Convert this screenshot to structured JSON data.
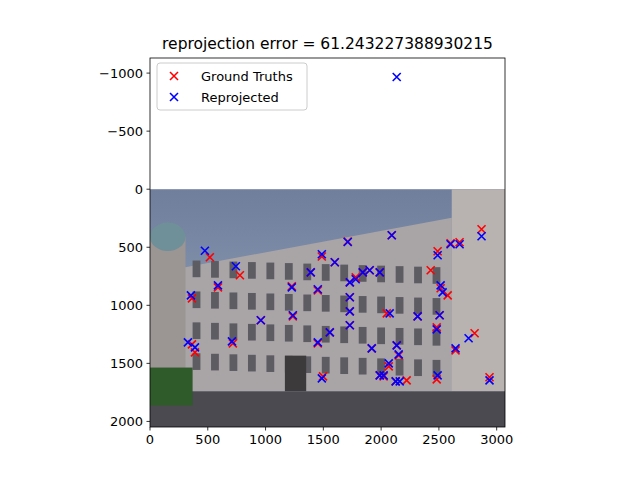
{
  "chart_data": {
    "type": "scatter",
    "title": "reprojection error = 61.243227388930215",
    "xlim": [
      0,
      3072
    ],
    "ylim": [
      2048,
      -1130
    ],
    "xticks": [
      0,
      500,
      1000,
      1500,
      2000,
      2500,
      3000
    ],
    "yticks": [
      {
        "value": -1000,
        "label": "−1000"
      },
      {
        "value": -500,
        "label": "−500"
      },
      0,
      500,
      1000,
      1500,
      2000
    ],
    "legend": "upper left",
    "grid": false,
    "series": [
      {
        "name": "Ground Truths",
        "color": "red",
        "marker": "x",
        "x": [
          1711,
          2092,
          518,
          588,
          778,
          363,
          959,
          363,
          389,
          717,
          1227,
          1236,
          1391,
          1452,
          1487,
          1599,
          1452,
          1556,
          1497,
          1729,
          1729,
          1729,
          1729,
          1780,
          1841,
          1901,
          1988,
          2049,
          1919,
          1988,
          2022,
          2066,
          2135,
          2152,
          2126,
          2221,
          2316,
          2429,
          2489,
          2515,
          2576,
          2481,
          2506,
          2481,
          2601,
          2679,
          2644,
          2869,
          2809,
          2938
        ],
        "values": [
          450,
          397,
          586,
          845,
          741,
          940,
          1129,
          1336,
          1405,
          1328,
          836,
          1095,
          716,
          871,
          580,
          629,
          1328,
          1233,
          1612,
          802,
          931,
          1052,
          1172,
          759,
          716,
          698,
          716,
          1069,
          1371,
          1603,
          1612,
          1526,
          1345,
          1431,
          1655,
          1647,
          1095,
          698,
          534,
          853,
          914,
          1190,
          1086,
          1638,
          465,
          457,
          1388,
          345,
          1241,
          1620
        ]
      },
      {
        "name": "Reprojected",
        "color": "blue",
        "marker": "x",
        "x": [
          1711,
          2135,
          475,
          588,
          743,
          354,
          959,
          328,
          389,
          709,
          1227,
          1236,
          1391,
          1452,
          1487,
          1599,
          1452,
          1556,
          1487,
          1729,
          1729,
          1729,
          1729,
          1780,
          1841,
          1901,
          1988,
          2074,
          1919,
          1988,
          2022,
          2066,
          2135,
          2152,
          2126,
          2161,
          2316,
          2092,
          2489,
          2515,
          2532,
          2481,
          2506,
          2489,
          2601,
          2679,
          2644,
          2869,
          2757,
          2938
        ],
        "values": [
          455,
          -966,
          530,
          828,
          664,
          914,
          1129,
          1319,
          1362,
          1310,
          845,
          1086,
          716,
          862,
          560,
          629,
          1319,
          1233,
          1629,
          802,
          931,
          1052,
          1172,
          776,
          716,
          698,
          716,
          1069,
          1371,
          1603,
          1603,
          1500,
          1345,
          1422,
          1655,
          1655,
          1095,
          397,
          569,
          828,
          888,
          1207,
          1086,
          1603,
          474,
          474,
          1371,
          405,
          1284,
          1646
        ]
      }
    ]
  }
}
